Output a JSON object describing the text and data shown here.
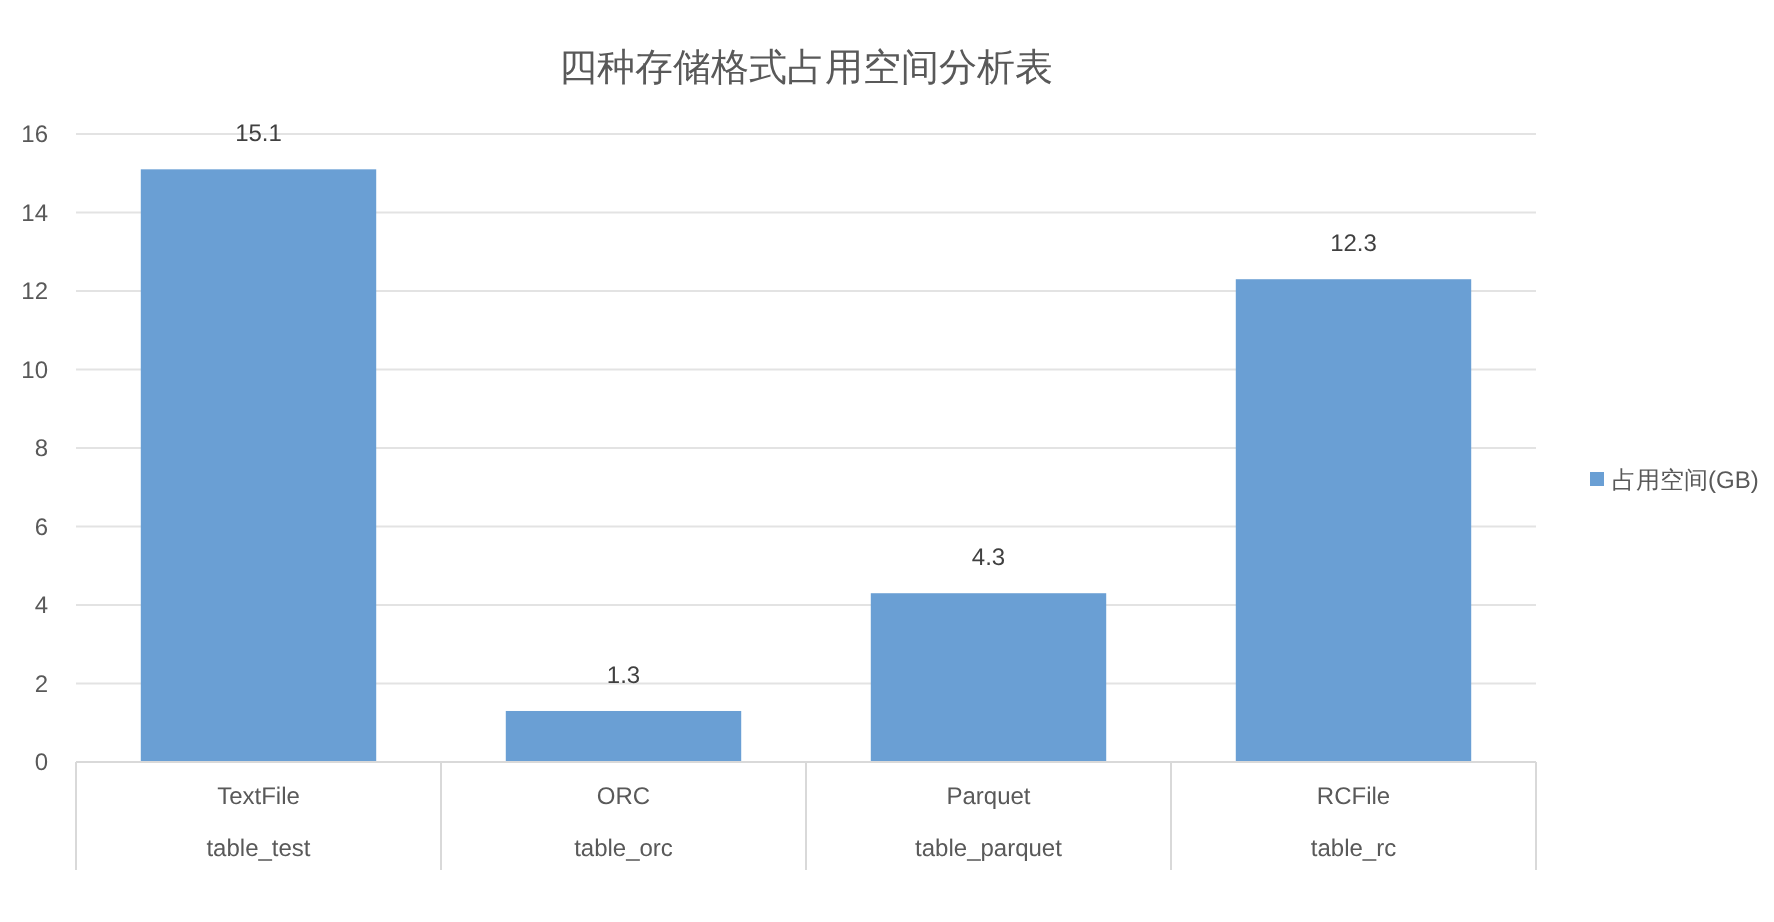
{
  "chart_data": {
    "type": "bar",
    "title": "四种存储格式占用空间分析表",
    "categories": [
      "TextFile\ntable_test",
      "ORC\ntable_orc",
      "Parquet\ntable_parquet",
      "RCFile\ntable_rc"
    ],
    "series": [
      {
        "name": "占用空间(GB)",
        "color": "#6a9fd4",
        "values": [
          15.1,
          1.3,
          4.3,
          12.3
        ]
      }
    ],
    "ylim": [
      0,
      16
    ],
    "yticks": [
      0,
      2,
      4,
      6,
      8,
      10,
      12,
      14,
      16
    ],
    "grid": "y",
    "legend": "right",
    "data_labels": true
  }
}
